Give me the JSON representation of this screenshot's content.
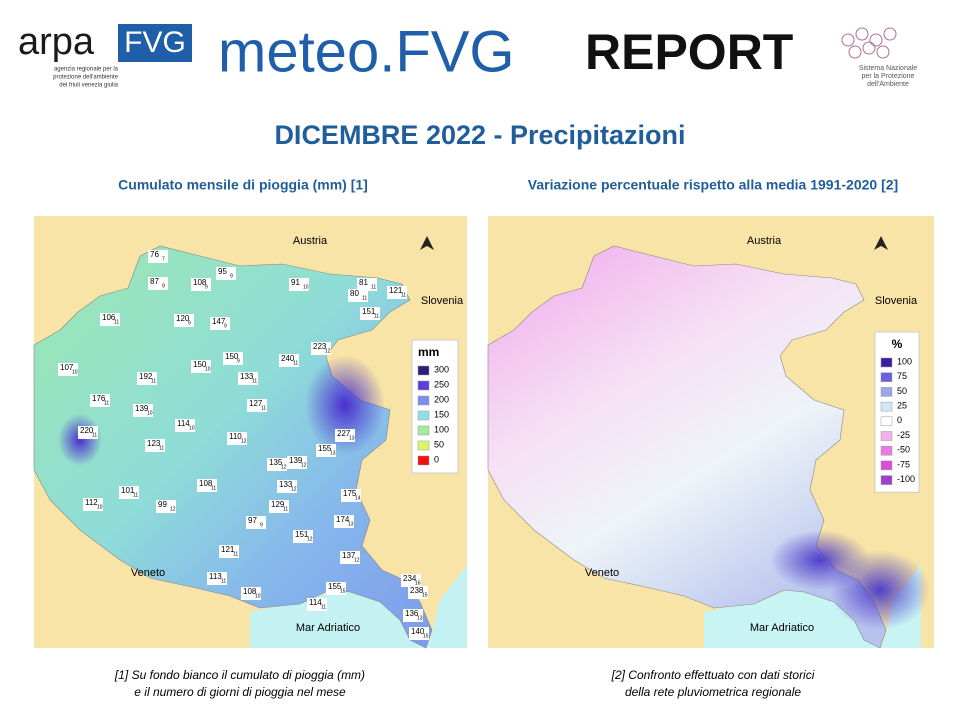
{
  "header": {
    "logo_left": "arpa",
    "logo_left_box": "FVG",
    "logo_left_sub": [
      "agenzia regionale per la",
      "protezione dell'ambiente",
      "del friuli venezia giulia"
    ],
    "brand": "meteo.FVG",
    "brand_report": "REPORT",
    "logo_right_sub": [
      "Sistema Nazionale",
      "per la Protezione",
      "dell'Ambiente"
    ]
  },
  "title": "DICEMBRE 2022 - Precipitazioni",
  "panels": [
    {
      "subtitle": "Cumulato mensile di pioggia (mm) [1]",
      "places": [
        "Austria",
        "Slovenia",
        "Veneto",
        "Mar Adriatico"
      ],
      "legend_title": "mm",
      "legend": [
        {
          "label": "300",
          "color": "#2a1f7a"
        },
        {
          "label": "250",
          "color": "#5b3fd8"
        },
        {
          "label": "200",
          "color": "#7f8ee8"
        },
        {
          "label": "150",
          "color": "#8fe0e6"
        },
        {
          "label": "100",
          "color": "#a0eca0"
        },
        {
          "label": "50",
          "color": "#d9f56a"
        },
        {
          "label": "0",
          "color": "#f01010"
        }
      ],
      "stations": [
        {
          "value": 76,
          "days": 7
        },
        {
          "value": 95,
          "days": 9
        },
        {
          "value": 87,
          "days": 9
        },
        {
          "value": 108,
          "days": 9
        },
        {
          "value": 91,
          "days": 10
        },
        {
          "value": 81,
          "days": 11
        },
        {
          "value": 80,
          "days": 11
        },
        {
          "value": 121,
          "days": 11
        },
        {
          "value": 151,
          "days": 11
        },
        {
          "value": 106,
          "days": 11
        },
        {
          "value": 120,
          "days": 9
        },
        {
          "value": 147,
          "days": 9
        },
        {
          "value": 240,
          "days": 11
        },
        {
          "value": 223,
          "days": 12
        },
        {
          "value": 107,
          "days": 10
        },
        {
          "value": 150,
          "days": 9
        },
        {
          "value": 150,
          "days": 10
        },
        {
          "value": 192,
          "days": 11
        },
        {
          "value": 133,
          "days": 11
        },
        {
          "value": 176,
          "days": 11
        },
        {
          "value": 139,
          "days": 10
        },
        {
          "value": 127,
          "days": 11
        },
        {
          "value": 114,
          "days": 10
        },
        {
          "value": 220,
          "days": 11
        },
        {
          "value": 227,
          "days": 13
        },
        {
          "value": 123,
          "days": 11
        },
        {
          "value": 110,
          "days": 12
        },
        {
          "value": 155,
          "days": 13
        },
        {
          "value": 135,
          "days": 12
        },
        {
          "value": 139,
          "days": 12
        },
        {
          "value": 133,
          "days": 12
        },
        {
          "value": 108,
          "days": 11
        },
        {
          "value": 175,
          "days": 14
        },
        {
          "value": 101,
          "days": 11
        },
        {
          "value": 112,
          "days": 10
        },
        {
          "value": 99,
          "days": 12
        },
        {
          "value": 129,
          "days": 11
        },
        {
          "value": 97,
          "days": 9
        },
        {
          "value": 174,
          "days": 13
        },
        {
          "value": 151,
          "days": 12
        },
        {
          "value": 121,
          "days": 11
        },
        {
          "value": 137,
          "days": 12
        },
        {
          "value": 113,
          "days": 11
        },
        {
          "value": 155,
          "days": 15
        },
        {
          "value": 234,
          "days": 16
        },
        {
          "value": 238,
          "days": 15
        },
        {
          "value": 108,
          "days": 10
        },
        {
          "value": 114,
          "days": 11
        },
        {
          "value": 136,
          "days": 13
        },
        {
          "value": 140,
          "days": 15
        }
      ],
      "note": [
        "[1] Su fondo bianco il cumulato di pioggia (mm)",
        "e il numero di giorni di pioggia nel mese"
      ]
    },
    {
      "subtitle": "Variazione percentuale rispetto alla media 1991-2020 [2]",
      "places": [
        "Austria",
        "Slovenia",
        "Veneto",
        "Mar Adriatico"
      ],
      "legend_title": "%",
      "legend": [
        {
          "label": "100",
          "color": "#3a1fa0"
        },
        {
          "label": "75",
          "color": "#6a62dc"
        },
        {
          "label": "50",
          "color": "#9aa6ec"
        },
        {
          "label": "25",
          "color": "#d0e8f4"
        },
        {
          "label": "0",
          "color": "#ffffff"
        },
        {
          "label": "-25",
          "color": "#f4b0ec"
        },
        {
          "label": "-50",
          "color": "#ec78e4"
        },
        {
          "label": "-75",
          "color": "#d84ed8"
        },
        {
          "label": "-100",
          "color": "#a040c8"
        }
      ],
      "note": [
        "[2] Confronto effettuato con dati storici",
        "della rete pluviometrica regionale"
      ]
    }
  ]
}
